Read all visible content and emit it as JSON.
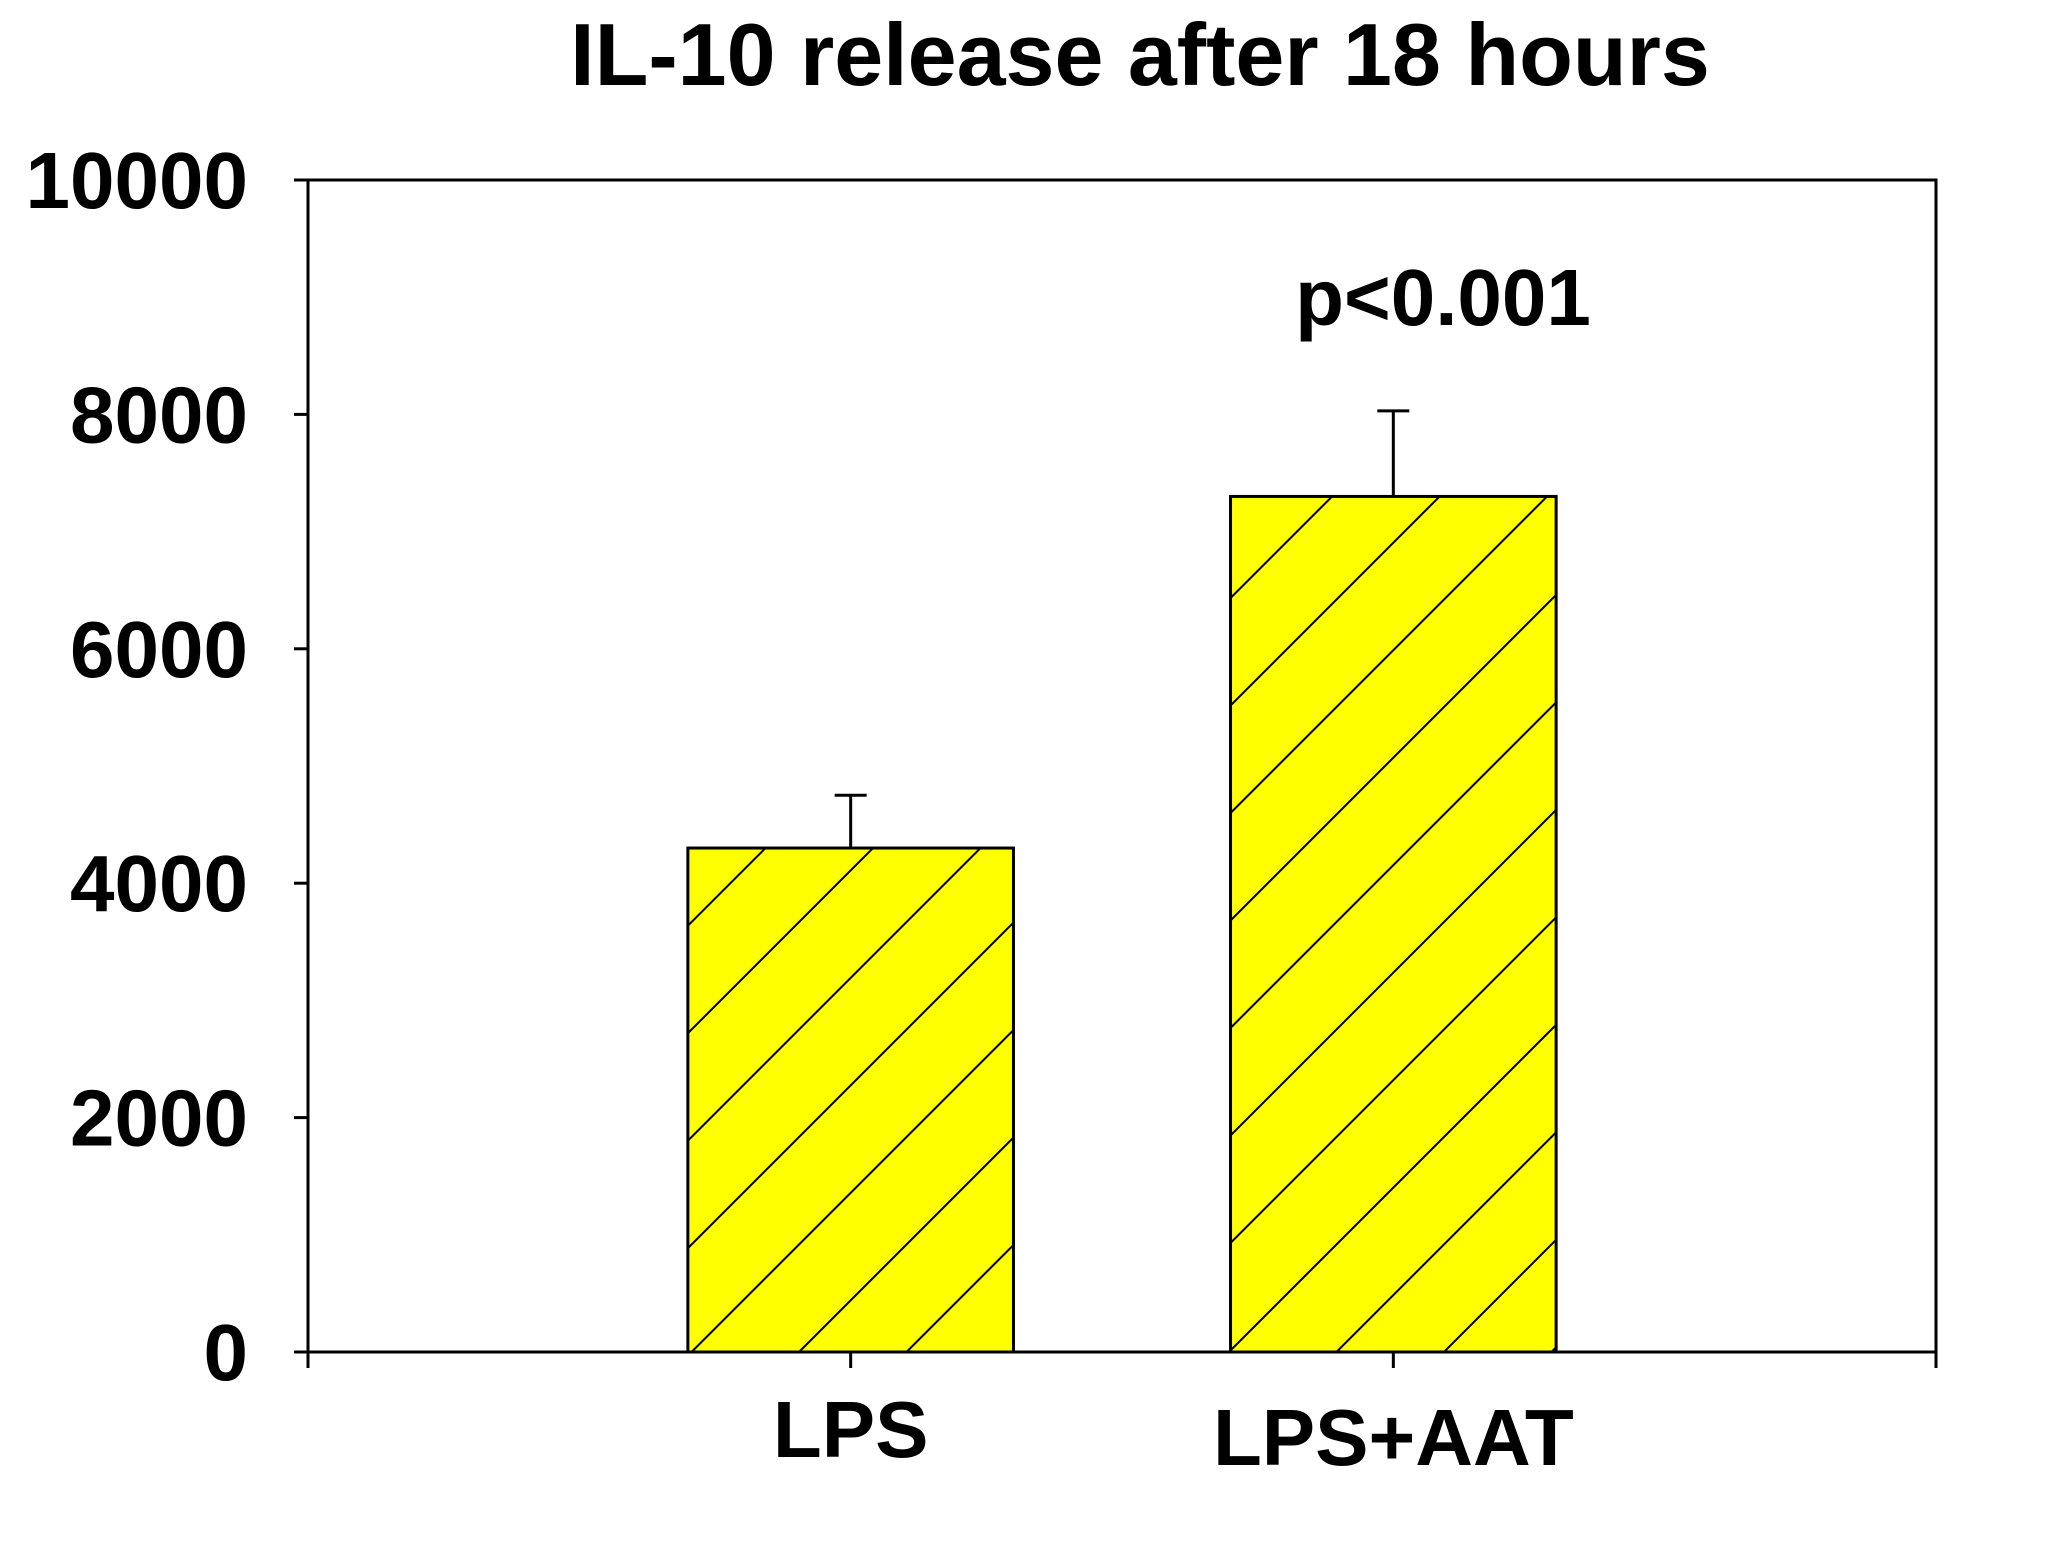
{
  "chart_data": {
    "type": "bar",
    "title": "IL-10 release after 18 hours",
    "xlabel": "",
    "ylabel": "",
    "categories": [
      "LPS",
      "LPS+AAT"
    ],
    "series": [
      {
        "values": [
          4300,
          7300
        ],
        "errors": [
          450,
          730
        ]
      }
    ],
    "ylim": [
      0,
      10000
    ],
    "yticks": [
      "0",
      "2000",
      "4000",
      "6000",
      "8000",
      "10000"
    ],
    "annotations": [
      "p<0.001"
    ],
    "bar_color": "#FFFF00",
    "bar_pattern": "diagonal-hatch",
    "grid": false,
    "legend": "none"
  }
}
